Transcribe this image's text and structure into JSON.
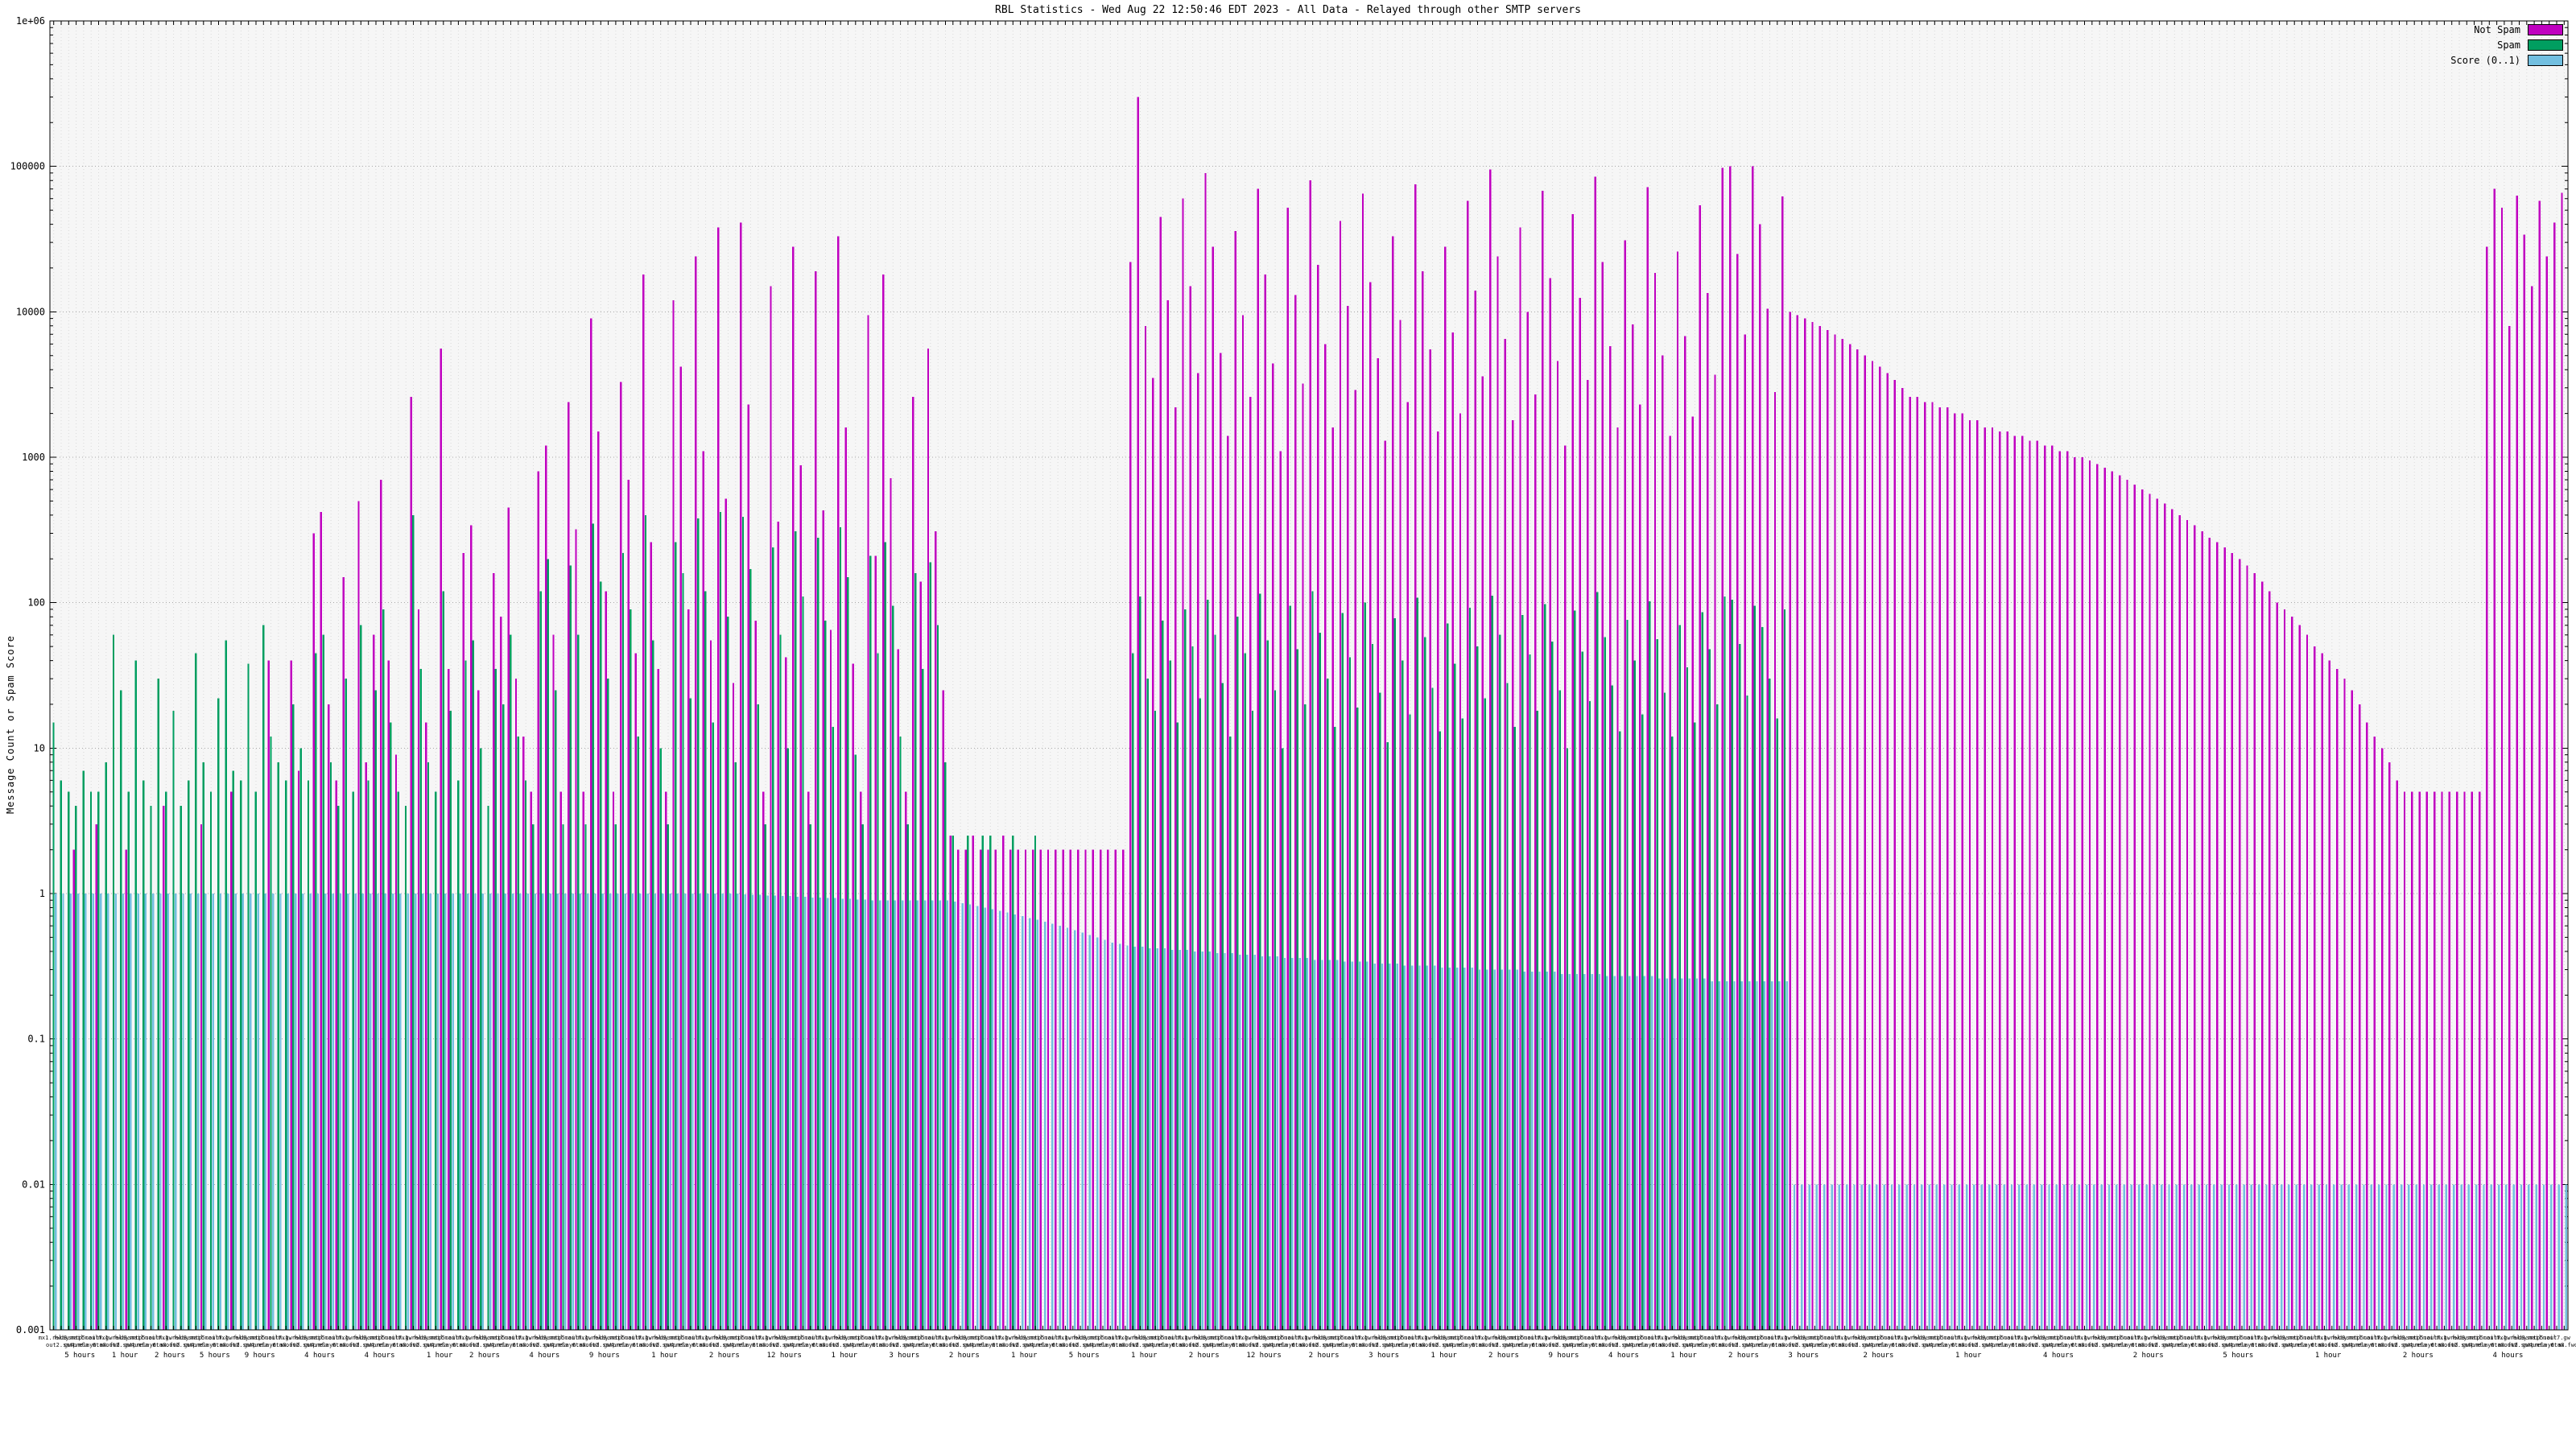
{
  "chart_data": {
    "type": "bar",
    "title": "RBL Statistics - Wed Aug 22 12:50:46 EDT 2023 - All Data - Relayed through other SMTP servers",
    "ylabel": "Message Count or Spam Score",
    "y_scale": "log",
    "ylim": [
      0.001,
      1000000
    ],
    "ytick_labels": [
      "1e+06",
      "100000",
      "10000",
      "1000",
      "100",
      "10",
      "1",
      "0.1",
      "0.01",
      "0.001"
    ],
    "grid": true,
    "legend_position": "top-right",
    "plot_bg": "#f6f6f6",
    "grid_color_v": "#d9d9d9",
    "grid_color_h": "#a8a8a8",
    "border_color": "#000000",
    "series": [
      {
        "name": "Not Spam",
        "color": "#c000c0",
        "values": [
          0,
          0,
          0,
          2,
          0,
          0,
          3,
          0,
          0,
          0,
          2,
          0,
          0,
          0,
          0,
          4,
          0,
          0,
          0,
          0,
          3,
          0,
          0,
          0,
          5,
          0,
          0,
          0,
          0,
          40,
          0,
          0,
          40,
          7,
          0,
          300,
          420,
          20,
          6,
          150,
          0,
          500,
          8,
          60,
          700,
          40,
          9,
          0,
          2600,
          90,
          15,
          0,
          5600,
          35,
          0,
          220,
          340,
          25,
          0,
          160,
          80,
          450,
          30,
          12,
          5,
          800,
          1200,
          60,
          5,
          2400,
          320,
          5,
          9000,
          1500,
          120,
          5,
          3300,
          700,
          45,
          18000,
          260,
          35,
          5,
          12000,
          4200,
          90,
          24000,
          1100,
          55,
          38000,
          520,
          28,
          41000,
          2300,
          75,
          5,
          15000,
          360,
          42,
          28000,
          880,
          5,
          19000,
          430,
          65,
          33000,
          1600,
          38,
          5,
          9500,
          210,
          18000,
          720,
          48,
          5,
          2600,
          140,
          5600,
          310,
          25,
          2.5,
          2,
          2,
          2.5,
          2,
          2,
          2,
          2.5,
          2,
          2,
          2,
          2,
          2,
          2,
          2,
          2,
          2,
          2,
          2,
          2,
          2,
          2,
          2,
          2,
          22000,
          300000,
          8000,
          3500,
          45000,
          12000,
          2200,
          60000,
          15000,
          3800,
          90000,
          28000,
          5200,
          1400,
          36000,
          9500,
          2600,
          70000,
          18000,
          4400,
          1100,
          52000,
          13000,
          3200,
          80000,
          21000,
          6000,
          1600,
          42000,
          11000,
          2900,
          65000,
          16000,
          4800,
          1300,
          33000,
          8800,
          2400,
          75000,
          19000,
          5500,
          1500,
          28000,
          7200,
          2000,
          58000,
          14000,
          3600,
          95000,
          24000,
          6500,
          1800,
          38000,
          10000,
          2700,
          68000,
          17000,
          4600,
          1200,
          47000,
          12500,
          3400,
          85000,
          22000,
          5800,
          1600,
          31000,
          8200,
          2300,
          72000,
          18500,
          5000,
          1400,
          26000,
          6800,
          1900,
          54000,
          13500,
          3700,
          98000,
          100000,
          25000,
          7000,
          100000,
          40000,
          10500,
          2800,
          62000,
          10000,
          9500,
          9000,
          8500,
          8000,
          7500,
          7000,
          6500,
          6000,
          5500,
          5000,
          4600,
          4200,
          3800,
          3400,
          3000,
          2600,
          2600,
          2400,
          2400,
          2200,
          2200,
          2000,
          2000,
          1800,
          1800,
          1600,
          1600,
          1500,
          1500,
          1400,
          1400,
          1300,
          1300,
          1200,
          1200,
          1100,
          1100,
          1000,
          1000,
          950,
          900,
          850,
          800,
          750,
          700,
          650,
          600,
          560,
          520,
          480,
          440,
          400,
          370,
          340,
          310,
          280,
          260,
          240,
          220,
          200,
          180,
          160,
          140,
          120,
          100,
          90,
          80,
          70,
          60,
          50,
          45,
          40,
          35,
          30,
          25,
          20,
          15,
          12,
          10,
          8,
          6,
          5,
          5,
          5,
          5,
          5,
          5,
          5,
          5,
          5,
          5,
          5,
          28000,
          70000,
          52000,
          8000,
          63000,
          34000,
          15000,
          58000,
          24000,
          41000,
          66000
        ]
      },
      {
        "name": "Spam",
        "color": "#009e60",
        "values": [
          15,
          6,
          5,
          4,
          7,
          5,
          5,
          8,
          60,
          25,
          5,
          40,
          6,
          4,
          30,
          5,
          18,
          4,
          6,
          45,
          8,
          5,
          22,
          55,
          7,
          6,
          38,
          5,
          70,
          12,
          8,
          6,
          20,
          10,
          6,
          45,
          60,
          8,
          4,
          30,
          5,
          70,
          6,
          25,
          90,
          15,
          5,
          4,
          400,
          35,
          8,
          5,
          120,
          18,
          6,
          40,
          55,
          10,
          4,
          35,
          20,
          60,
          12,
          6,
          3,
          120,
          200,
          25,
          3,
          180,
          60,
          3,
          350,
          140,
          30,
          3,
          220,
          90,
          12,
          400,
          55,
          10,
          3,
          260,
          160,
          22,
          380,
          120,
          15,
          420,
          80,
          8,
          390,
          170,
          20,
          3,
          240,
          60,
          10,
          310,
          110,
          3,
          280,
          75,
          14,
          330,
          150,
          9,
          3,
          210,
          45,
          260,
          95,
          12,
          3,
          160,
          35,
          190,
          70,
          8,
          2.5,
          0,
          2.5,
          0,
          2.5,
          2.5,
          0,
          0,
          2.5,
          0,
          0,
          2.5,
          0,
          0,
          0,
          0,
          0,
          0,
          0,
          0,
          0,
          0,
          0,
          0,
          45,
          110,
          30,
          18,
          75,
          40,
          15,
          90,
          50,
          22,
          105,
          60,
          28,
          12,
          80,
          45,
          18,
          115,
          55,
          25,
          10,
          95,
          48,
          20,
          120,
          62,
          30,
          14,
          85,
          42,
          19,
          100,
          52,
          24,
          11,
          78,
          40,
          17,
          108,
          58,
          26,
          13,
          72,
          38,
          16,
          92,
          50,
          22,
          112,
          60,
          28,
          14,
          82,
          44,
          18,
          98,
          54,
          25,
          10,
          88,
          46,
          21,
          118,
          58,
          27,
          13,
          76,
          40,
          17,
          102,
          56,
          24,
          12,
          70,
          36,
          15,
          86,
          48,
          20,
          110,
          105,
          52,
          23,
          95,
          68,
          30,
          16,
          90,
          0,
          0,
          0,
          0,
          0,
          0,
          0,
          0,
          0,
          0,
          0,
          0,
          0,
          0,
          0,
          0,
          0,
          0,
          0,
          0,
          0,
          0,
          0,
          0,
          0,
          0,
          0,
          0,
          0,
          0,
          0,
          0,
          0,
          0,
          0,
          0,
          0,
          0,
          0,
          0,
          0,
          0,
          0,
          0,
          0,
          0,
          0,
          0,
          0,
          0,
          0,
          0,
          0,
          0,
          0,
          0,
          0,
          0,
          0,
          0,
          0,
          0,
          0,
          0,
          0,
          0,
          0,
          0,
          0,
          0,
          0,
          0,
          0,
          0,
          0,
          0,
          0,
          0,
          0,
          0,
          0,
          0,
          0,
          0,
          0,
          0,
          0,
          0,
          0,
          0,
          0,
          0,
          0,
          0,
          0,
          0,
          0,
          0,
          0,
          0,
          0,
          0,
          0,
          0
        ]
      },
      {
        "name": "Score (0..1)",
        "color": "#72bfe0",
        "values": [
          1,
          1,
          1,
          1,
          1,
          1,
          1,
          1,
          1,
          1,
          1,
          1,
          1,
          1,
          1,
          1,
          1,
          1,
          1,
          1,
          1,
          1,
          1,
          1,
          1,
          1,
          1,
          1,
          1,
          1,
          1,
          1,
          1,
          1,
          1,
          1,
          1,
          1,
          1,
          1,
          1,
          1,
          1,
          1,
          1,
          1,
          1,
          1,
          1,
          1,
          1,
          1,
          1,
          1,
          1,
          1,
          1,
          1,
          1,
          1,
          1,
          1,
          1,
          1,
          1,
          1,
          1,
          1,
          1,
          1,
          1,
          1,
          1,
          1,
          1,
          1,
          1,
          1,
          1,
          1,
          1,
          1,
          1,
          1,
          1,
          1,
          1,
          1,
          1,
          1,
          1,
          1,
          0.99,
          0.98,
          0.98,
          0.97,
          0.97,
          0.96,
          0.96,
          0.95,
          0.95,
          0.94,
          0.94,
          0.93,
          0.93,
          0.92,
          0.92,
          0.91,
          0.91,
          0.9,
          0.9,
          0.9,
          0.9,
          0.9,
          0.9,
          0.9,
          0.9,
          0.9,
          0.9,
          0.9,
          0.88,
          0.86,
          0.84,
          0.82,
          0.8,
          0.78,
          0.76,
          0.74,
          0.72,
          0.7,
          0.68,
          0.66,
          0.64,
          0.62,
          0.6,
          0.58,
          0.56,
          0.54,
          0.52,
          0.5,
          0.48,
          0.46,
          0.45,
          0.44,
          0.43,
          0.43,
          0.42,
          0.42,
          0.42,
          0.41,
          0.41,
          0.41,
          0.4,
          0.4,
          0.4,
          0.39,
          0.39,
          0.39,
          0.38,
          0.38,
          0.38,
          0.37,
          0.37,
          0.37,
          0.36,
          0.36,
          0.36,
          0.36,
          0.35,
          0.35,
          0.35,
          0.35,
          0.34,
          0.34,
          0.34,
          0.34,
          0.33,
          0.33,
          0.33,
          0.33,
          0.32,
          0.32,
          0.32,
          0.32,
          0.32,
          0.31,
          0.31,
          0.31,
          0.31,
          0.31,
          0.3,
          0.3,
          0.3,
          0.3,
          0.3,
          0.3,
          0.29,
          0.29,
          0.29,
          0.29,
          0.29,
          0.28,
          0.28,
          0.28,
          0.28,
          0.28,
          0.28,
          0.27,
          0.27,
          0.27,
          0.27,
          0.27,
          0.27,
          0.27,
          0.26,
          0.26,
          0.26,
          0.26,
          0.26,
          0.26,
          0.26,
          0.25,
          0.25,
          0.25,
          0.25,
          0.25,
          0.25,
          0.25,
          0.25,
          0.25,
          0.25,
          0.25,
          0.01,
          0.01,
          0.01,
          0.01,
          0.01,
          0.01,
          0.01,
          0.01,
          0.01,
          0.01,
          0.01,
          0.01,
          0.01,
          0.01,
          0.01,
          0.01,
          0.01,
          0.01,
          0.01,
          0.01,
          0.01,
          0.01,
          0.01,
          0.01,
          0.01,
          0.01,
          0.01,
          0.01,
          0.01,
          0.01,
          0.01,
          0.01,
          0.01,
          0.01,
          0.01,
          0.01,
          0.01,
          0.01,
          0.01,
          0.01,
          0.01,
          0.01,
          0.01,
          0.01,
          0.01,
          0.01,
          0.01,
          0.01,
          0.01,
          0.01,
          0.01,
          0.01,
          0.01,
          0.01,
          0.01,
          0.01,
          0.01,
          0.01,
          0.01,
          0.01,
          0.01,
          0.01,
          0.01,
          0.01,
          0.01,
          0.01,
          0.01,
          0.01,
          0.01,
          0.01,
          0.01,
          0.01,
          0.01,
          0.01,
          0.01,
          0.01,
          0.01,
          0.01,
          0.01,
          0.01,
          0.01,
          0.01,
          0.01,
          0.01,
          0.01,
          0.01,
          0.01,
          0.01,
          0.01,
          0.01,
          0.01,
          0.01,
          0.01,
          0.01,
          0.01,
          0.01,
          0.01,
          0.01,
          0.01,
          0.01,
          0.01,
          0.01,
          0.01,
          0.01
        ]
      }
    ],
    "x_dense_labels_cycle": [
      "mx1.relay",
      "out2.smtp",
      "fwd3.mail",
      "gw4.mta",
      "smtp5.out",
      "relay6.mx",
      "mail7.gw",
      "mta8.fwd"
    ],
    "x_time_labels": [
      [
        4,
        "5 hours"
      ],
      [
        10,
        "1 hour"
      ],
      [
        16,
        "2 hours"
      ],
      [
        22,
        "5 hours"
      ],
      [
        28,
        "9 hours"
      ],
      [
        36,
        "4 hours"
      ],
      [
        44,
        "4 hours"
      ],
      [
        52,
        "1 hour"
      ],
      [
        58,
        "2 hours"
      ],
      [
        66,
        "4 hours"
      ],
      [
        74,
        "9 hours"
      ],
      [
        82,
        "1 hour"
      ],
      [
        90,
        "2 hours"
      ],
      [
        98,
        "12 hours"
      ],
      [
        106,
        "1 hour"
      ],
      [
        114,
        "3 hours"
      ],
      [
        122,
        "2 hours"
      ],
      [
        130,
        "1 hour"
      ],
      [
        138,
        "5 hours"
      ],
      [
        146,
        "1 hour"
      ],
      [
        154,
        "2 hours"
      ],
      [
        162,
        "12 hours"
      ],
      [
        170,
        "2 hours"
      ],
      [
        178,
        "3 hours"
      ],
      [
        186,
        "1 hour"
      ],
      [
        194,
        "2 hours"
      ],
      [
        202,
        "9 hours"
      ],
      [
        210,
        "4 hours"
      ],
      [
        218,
        "1 hour"
      ],
      [
        226,
        "2 hours"
      ],
      [
        234,
        "3 hours"
      ],
      [
        244,
        "2 hours"
      ],
      [
        256,
        "1 hour"
      ],
      [
        268,
        "4 hours"
      ],
      [
        280,
        "2 hours"
      ],
      [
        292,
        "5 hours"
      ],
      [
        304,
        "1 hour"
      ],
      [
        316,
        "2 hours"
      ],
      [
        328,
        "4 hours"
      ]
    ]
  }
}
